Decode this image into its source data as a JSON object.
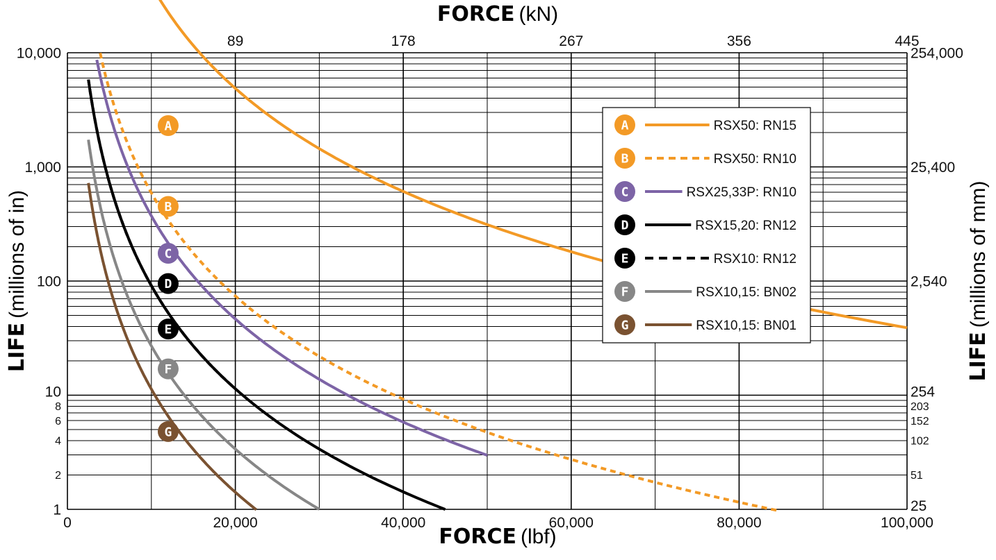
{
  "chart_data": {
    "type": "line",
    "x_axis": {
      "title_bold": "FORCE",
      "title_unit": "(lbf)",
      "range": [
        0,
        100000
      ],
      "ticks": [
        0,
        20000,
        40000,
        60000,
        80000,
        100000
      ],
      "tick_labels": [
        "0",
        "20,000",
        "40,000",
        "60,000",
        "80,000",
        "100,000"
      ]
    },
    "x2_axis": {
      "title_bold": "FORCE",
      "title_unit": "(kN)",
      "ticks_lbf": [
        20000,
        40000,
        60000,
        80000,
        100000
      ],
      "tick_labels": [
        "89",
        "178",
        "267",
        "356",
        "445"
      ]
    },
    "y_axis": {
      "title_bold": "LIFE",
      "title_unit": "(millions of in)",
      "scale": "log",
      "range": [
        1,
        10000
      ],
      "tick_values": [
        1,
        2,
        4,
        6,
        8,
        10,
        100,
        1000,
        10000
      ],
      "tick_labels": [
        "1",
        "2",
        "4",
        "6",
        "8",
        "10",
        "100",
        "1,000",
        "10,000"
      ]
    },
    "y2_axis": {
      "title_bold": "LIFE",
      "title_unit": "(millions of mm)",
      "tick_values": [
        1,
        2,
        4,
        6,
        8,
        10,
        100,
        1000,
        10000
      ],
      "tick_labels": [
        "25",
        "51",
        "102",
        "152",
        "203",
        "254",
        "2,540",
        "25,400",
        "254,000"
      ]
    },
    "grid": true,
    "legend_position": "top-right",
    "series": [
      {
        "marker": "A",
        "name": "RSX50: RN15",
        "color": "#f39a26",
        "dash": "solid",
        "constant": 3.9e+16,
        "x_range": [
          6700,
          100000
        ],
        "marker_at": [
          12000,
          2300
        ]
      },
      {
        "marker": "B",
        "name": "RSX50: RN10",
        "color": "#f39a26",
        "dash": "dashed",
        "constant": 591000000000000.0,
        "x_range": [
          3900,
          84500
        ],
        "marker_at": [
          12000,
          450
        ]
      },
      {
        "marker": "C",
        "name": "RSX25,33P: RN10",
        "color": "#7d64a6",
        "dash": "solid",
        "constant": 372000000000000.0,
        "x_range": [
          3500,
          50000
        ],
        "marker_at": [
          12000,
          175
        ]
      },
      {
        "marker": "D",
        "name": "RSX15,20: RN12",
        "color": "#000000",
        "dash": "solid",
        "constant": 91000000000000.0,
        "x_range": [
          2500,
          45000
        ],
        "marker_at": [
          12000,
          95
        ]
      },
      {
        "marker": "E",
        "name": "RSX10: RN12",
        "color": "#000000",
        "dash": "dashed",
        "constant": 91000000000000.0,
        "x_range": [
          2500,
          20000
        ],
        "marker_at": [
          12000,
          38
        ]
      },
      {
        "marker": "F",
        "name": "RSX10,15: BN02",
        "color": "#878787",
        "dash": "solid",
        "constant": 27000000000000.0,
        "x_range": [
          2500,
          30000
        ],
        "marker_at": [
          12000,
          17
        ]
      },
      {
        "marker": "G",
        "name": "RSX10,15: BN01",
        "color": "#7a5231",
        "dash": "solid",
        "constant": 11300000000000.0,
        "x_range": [
          2500,
          22500
        ],
        "marker_at": [
          12000,
          4.8
        ]
      }
    ]
  }
}
